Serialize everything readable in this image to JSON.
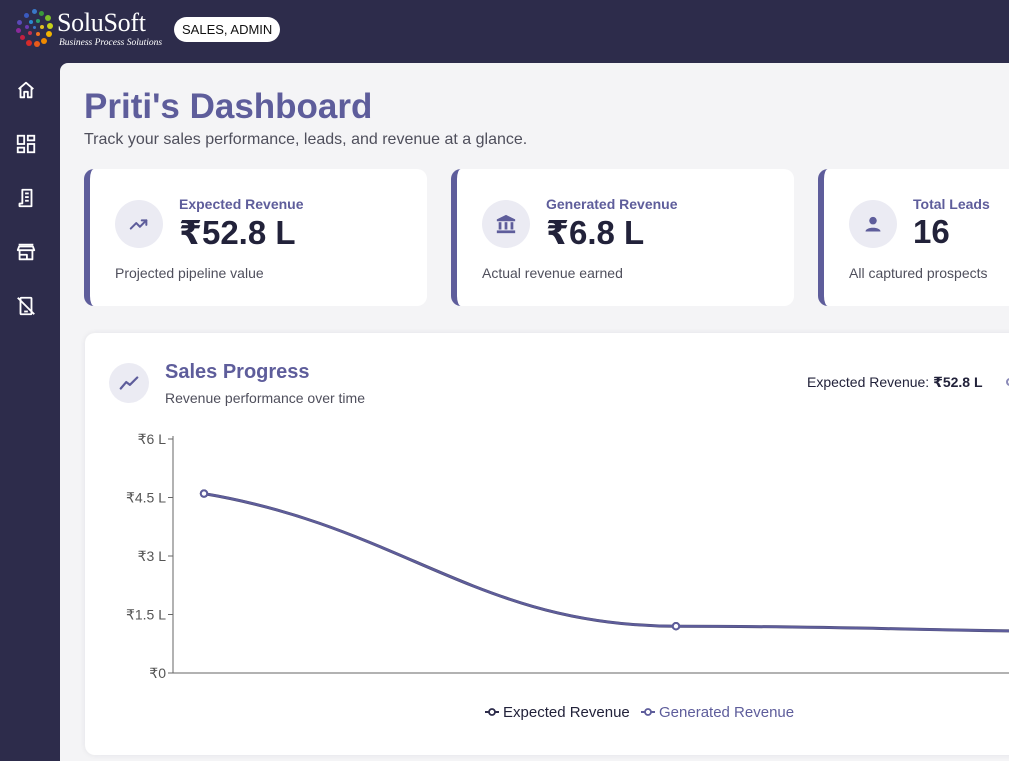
{
  "brand": {
    "name": "SoluSoft",
    "tagline": "Business Process Solutions",
    "role_badge": "SALES, ADMIN"
  },
  "colors": {
    "sidebar_bg": "#2d2c4b",
    "accent": "#5e5d9b",
    "expected_series": "#2d2c4b",
    "generated_series": "#5e5d9b"
  },
  "sidebar": {
    "items": [
      {
        "name": "home",
        "icon": "home-icon"
      },
      {
        "name": "dashboard",
        "icon": "dashboard-icon"
      },
      {
        "name": "reports",
        "icon": "receipt-icon"
      },
      {
        "name": "store",
        "icon": "store-icon"
      },
      {
        "name": "mobile-off",
        "icon": "mobile-off-icon"
      }
    ]
  },
  "header": {
    "title": "Priti's Dashboard",
    "subtitle": "Track your sales performance, leads, and revenue at a glance."
  },
  "stats": [
    {
      "label": "Expected Revenue",
      "value": "₹52.8 L",
      "description": "Projected pipeline value",
      "icon": "trending-up-icon"
    },
    {
      "label": "Generated Revenue",
      "value": "₹6.8 L",
      "description": "Actual revenue earned",
      "icon": "bank-icon"
    },
    {
      "label": "Total Leads",
      "value": "16",
      "description": "All captured prospects",
      "icon": "person-icon"
    }
  ],
  "sales_progress": {
    "title": "Sales Progress",
    "subtitle": "Revenue performance over time",
    "summary_label": "Expected Revenue: ",
    "summary_value": "₹52.8 L"
  },
  "chart_data": {
    "type": "line",
    "x": [
      0,
      1,
      2
    ],
    "series": [
      {
        "name": "Expected Revenue",
        "values": [
          4.6,
          1.2,
          1.05
        ]
      },
      {
        "name": "Generated Revenue",
        "values": [
          4.6,
          1.2,
          1.05
        ]
      }
    ],
    "ylim": [
      0,
      6
    ],
    "yticks": [
      0,
      1.5,
      3,
      4.5,
      6
    ],
    "ytick_labels": [
      "₹0",
      "₹1.5 L",
      "₹3 L",
      "₹4.5 L",
      "₹6 L"
    ],
    "legend": [
      "Expected Revenue",
      "Generated Revenue"
    ],
    "legend_position": "bottom",
    "grid": false
  }
}
